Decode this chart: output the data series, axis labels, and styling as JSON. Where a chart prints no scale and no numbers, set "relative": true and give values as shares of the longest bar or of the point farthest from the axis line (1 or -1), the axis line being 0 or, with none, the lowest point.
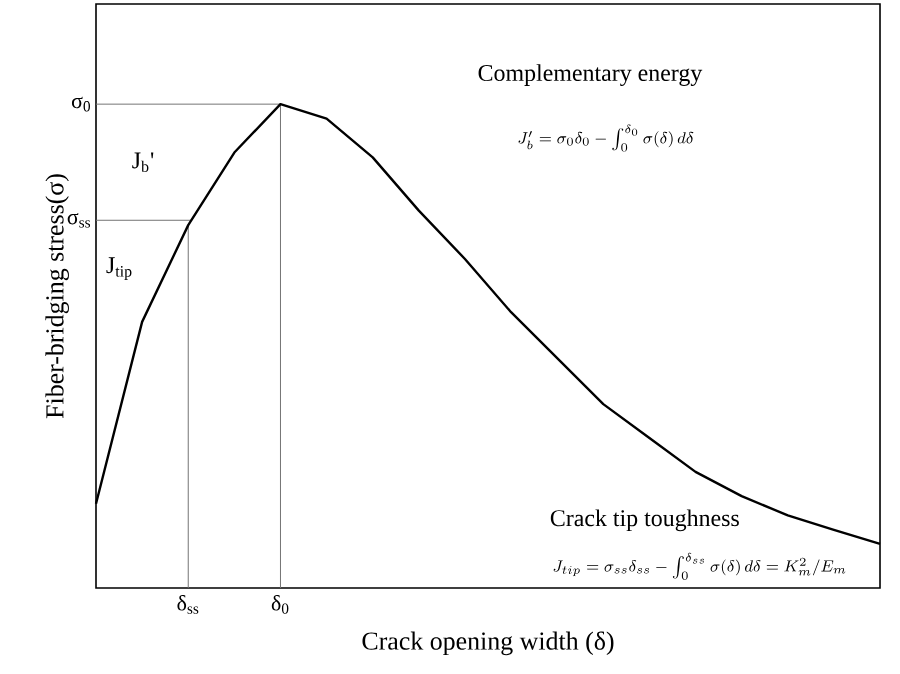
{
  "chart_data": {
    "type": "line",
    "relative": true,
    "xlabel": "Crack opening width (δ)",
    "ylabel": "Fiber-bridging stress(σ)",
    "categories": [
      null,
      null,
      "δ$_{ss}$",
      null,
      "δ$_{0}$",
      null,
      null,
      null,
      null,
      null,
      null,
      null,
      null,
      null,
      null,
      null,
      null,
      null
    ],
    "series": [
      {
        "color": "#000000",
        "values": [
          0.174,
          0.55,
          0.75,
          0.9,
          1,
          0.97,
          0.89,
          0.78,
          0.68,
          0.57,
          0.475,
          0.38,
          0.31,
          0.24,
          0.19,
          0.15,
          0.12,
          0.091
        ]
      }
    ],
    "ref_lines": [
      {
        "axis": "y",
        "value": 1,
        "label": "σ$_{0}$"
      },
      {
        "axis": "y",
        "value": 0.76,
        "label": "σ$_{ss}$"
      },
      {
        "axis": "x",
        "value": "δ$_{ss}$"
      },
      {
        "axis": "x",
        "value": "δ$_{0}$"
      }
    ],
    "annotations": [
      "Complementary energy",
      "J_b' = \\sigma_0\\delta_0 - \\int_0^{\\delta_0}\\sigma(\\delta)\\,d\\delta",
      "Crack tip toughness",
      "J_{tip} = \\sigma_{ss}\\delta_{ss} - \\int_0^{\\delta_{ss}}\\sigma(\\delta)\\,d\\delta = K_{m}^{2}/E_{m}",
      "J$_{b}$'",
      "J$_{tip}$"
    ],
    "tick_labels": "x",
    "grid": false,
    "marker": "none",
    "line_style": "solid"
  }
}
